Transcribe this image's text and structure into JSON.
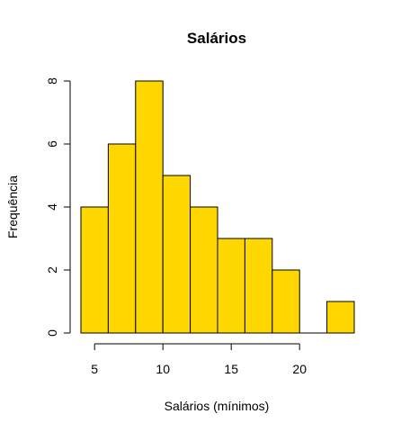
{
  "chart_data": {
    "type": "bar",
    "title": "Salários",
    "xlabel": "Salários (mínimos)",
    "ylabel": "Frequência",
    "bins": [
      {
        "x0": 4,
        "x1": 6,
        "count": 4
      },
      {
        "x0": 6,
        "x1": 8,
        "count": 6
      },
      {
        "x0": 8,
        "x1": 10,
        "count": 8
      },
      {
        "x0": 10,
        "x1": 12,
        "count": 5
      },
      {
        "x0": 12,
        "x1": 14,
        "count": 4
      },
      {
        "x0": 14,
        "x1": 16,
        "count": 3
      },
      {
        "x0": 16,
        "x1": 18,
        "count": 3
      },
      {
        "x0": 18,
        "x1": 20,
        "count": 2
      },
      {
        "x0": 20,
        "x1": 22,
        "count": 0
      },
      {
        "x0": 22,
        "x1": 24,
        "count": 1
      }
    ],
    "xticks": [
      5,
      10,
      15,
      20
    ],
    "yticks": [
      0,
      2,
      4,
      6,
      8
    ],
    "xlim": [
      4,
      24
    ],
    "ylim": [
      0,
      8
    ],
    "bar_color": "#FFD700",
    "edge_color": "#000000",
    "grid": false
  }
}
